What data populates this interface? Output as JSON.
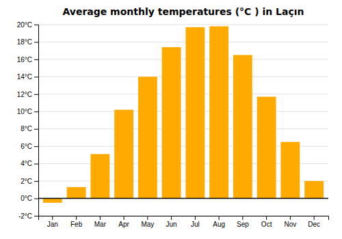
{
  "chart_data": {
    "type": "bar",
    "title": "Average monthly temperatures (°C ) in Laçın",
    "categories": [
      "Jan",
      "Feb",
      "Mar",
      "Apr",
      "May",
      "Jun",
      "Jul",
      "Aug",
      "Sep",
      "Oct",
      "Nov",
      "Dec"
    ],
    "values": [
      -0.5,
      1.3,
      5.1,
      10.2,
      14.0,
      17.4,
      19.7,
      19.8,
      16.5,
      11.7,
      6.5,
      2.0
    ],
    "color": "#FFAA00",
    "ylim": [
      -2,
      20
    ],
    "yticks": [
      {
        "value": -2,
        "label": "-2°C"
      },
      {
        "value": 0,
        "label": "0°C"
      },
      {
        "value": 2,
        "label": "2°C"
      },
      {
        "value": 4,
        "label": "4°C"
      },
      {
        "value": 6,
        "label": "6°C"
      },
      {
        "value": 8,
        "label": "8°C"
      },
      {
        "value": 10,
        "label": "10°C"
      },
      {
        "value": 12,
        "label": "12°C"
      },
      {
        "value": 14,
        "label": "14°C"
      },
      {
        "value": 16,
        "label": "16°C"
      },
      {
        "value": 18,
        "label": "18°C"
      },
      {
        "value": 20,
        "label": "20°C"
      }
    ],
    "grid": true
  }
}
